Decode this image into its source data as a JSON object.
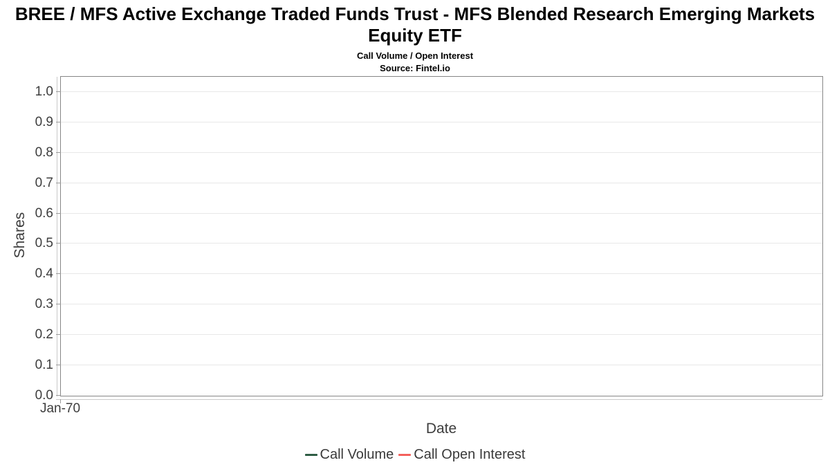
{
  "title": "BREE / MFS Active Exchange Traded Funds Trust - MFS Blended Research Emerging Markets Equity ETF",
  "subtitle": "Call Volume / Open Interest",
  "source": "Source: Fintel.io",
  "axes": {
    "x_label": "Date",
    "y_label": "Shares",
    "x_ticks": [
      "Jan-70"
    ],
    "y_ticks": [
      "0.0",
      "0.1",
      "0.2",
      "0.3",
      "0.4",
      "0.5",
      "0.6",
      "0.7",
      "0.8",
      "0.9",
      "1.0"
    ]
  },
  "legend": [
    {
      "label": "Call Volume",
      "color": "#2f5d45"
    },
    {
      "label": "Call Open Interest",
      "color": "#f4605c"
    }
  ],
  "colors": {
    "plot_border": "#868686",
    "gridline": "#e8e8e8",
    "axis_line": "#c9c9c9",
    "tick_mark": "#9a9a9a",
    "text": "#3d3d3d",
    "title_text": "#000000"
  },
  "chart_data": {
    "type": "line",
    "title": "BREE / MFS Active Exchange Traded Funds Trust - MFS Blended Research Emerging Markets Equity ETF",
    "subtitle": "Call Volume / Open Interest",
    "source": "Source: Fintel.io",
    "xlabel": "Date",
    "ylabel": "Shares",
    "x_tick_labels": [
      "Jan-70"
    ],
    "y_ticks": [
      0.0,
      0.1,
      0.2,
      0.3,
      0.4,
      0.5,
      0.6,
      0.7,
      0.8,
      0.9,
      1.0
    ],
    "ylim": [
      0,
      1.05
    ],
    "grid": true,
    "legend_position": "bottom",
    "series": [
      {
        "name": "Call Volume",
        "color": "#2f5d45",
        "x": [],
        "values": []
      },
      {
        "name": "Call Open Interest",
        "color": "#f4605c",
        "x": [],
        "values": []
      }
    ]
  }
}
